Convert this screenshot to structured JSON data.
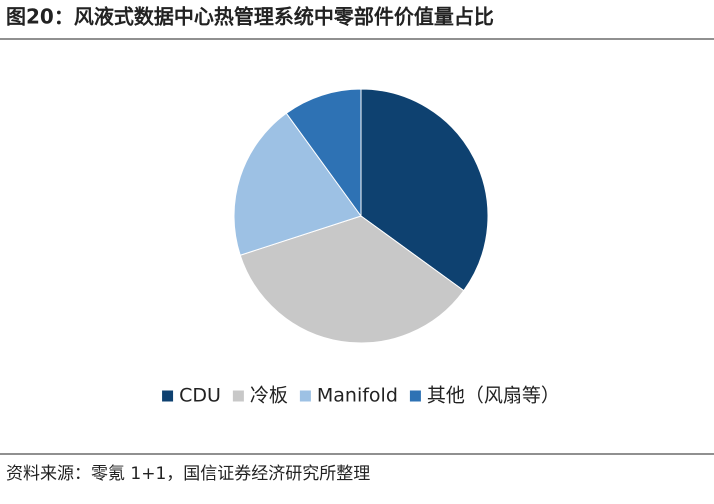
{
  "chart_data": {
    "type": "pie",
    "title": "图20：风液式数据中心热管理系统中零部件价值量占比",
    "categories": [
      "CDU",
      "冷板",
      "Manifold",
      "其他（风扇等）"
    ],
    "values": [
      35,
      35,
      20,
      10
    ],
    "colors": [
      "#0e4170",
      "#c8c8c8",
      "#9dc1e4",
      "#2e72b4"
    ],
    "legend": "bottom"
  },
  "source": "资料来源：零氪 1+1，国信证券经济研究所整理"
}
